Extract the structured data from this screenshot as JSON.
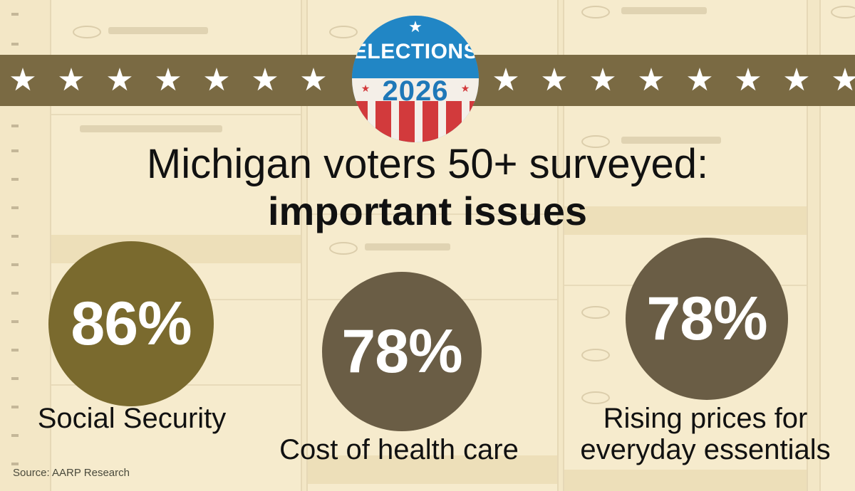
{
  "badge": {
    "title": "ELECTIONS",
    "year": "2026",
    "colors": {
      "blue": "#2186c5",
      "red": "#d23a3c",
      "white": "#f4efe8"
    }
  },
  "banner": {
    "color": "#7a6a43",
    "icon": "star-icon"
  },
  "headline": {
    "line1": "Michigan voters 50+ surveyed:",
    "line2": "important issues"
  },
  "stats": [
    {
      "value": "86%",
      "label": "Social Security",
      "color": "#7a6a2e"
    },
    {
      "value": "78%",
      "label": "Cost of health care",
      "color": "#6a5d45"
    },
    {
      "value": "78%",
      "label_line1": "Rising prices for",
      "label_line2": "everyday essentials",
      "color": "#6a5d45"
    }
  ],
  "source": "Source: AARP Research"
}
